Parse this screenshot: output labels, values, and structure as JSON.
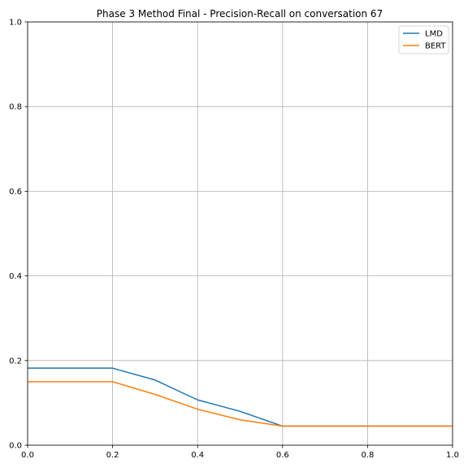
{
  "chart_data": {
    "type": "line",
    "title": "Phase 3 Method Final - Precision-Recall on conversation 67",
    "xlabel": "",
    "ylabel": "",
    "xlim": [
      0.0,
      1.0
    ],
    "ylim": [
      0.0,
      1.0
    ],
    "x_ticks": [
      "0.0",
      "0.2",
      "0.4",
      "0.6",
      "0.8",
      "1.0"
    ],
    "y_ticks": [
      "0.0",
      "0.2",
      "0.4",
      "0.6",
      "0.8",
      "1.0"
    ],
    "grid": true,
    "legend_position": "top-right",
    "series": [
      {
        "name": "LMD",
        "color": "#1f77b4",
        "x": [
          0.0,
          0.1,
          0.2,
          0.3,
          0.4,
          0.5,
          0.6,
          0.7,
          0.8,
          0.9,
          1.0
        ],
        "y": [
          0.182,
          0.182,
          0.182,
          0.154,
          0.107,
          0.08,
          0.045,
          0.045,
          0.045,
          0.045,
          0.045
        ]
      },
      {
        "name": "BERT",
        "color": "#ff7f0e",
        "x": [
          0.0,
          0.1,
          0.2,
          0.3,
          0.4,
          0.5,
          0.6,
          0.7,
          0.8,
          0.9,
          1.0
        ],
        "y": [
          0.15,
          0.15,
          0.15,
          0.12,
          0.085,
          0.06,
          0.045,
          0.045,
          0.045,
          0.045,
          0.045
        ]
      }
    ]
  }
}
